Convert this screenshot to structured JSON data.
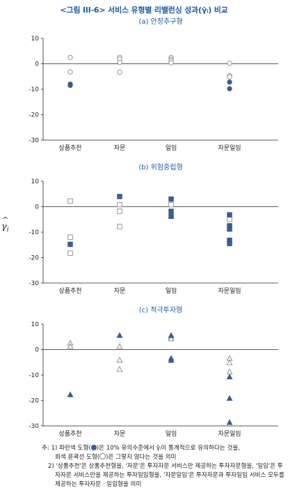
{
  "title": "<그림 III-6> 서비스 유형별 리밸런싱 성과(γ̂ᵢ) 비교",
  "y_axis_symbol": "γ̂i",
  "colors": {
    "title": "#1f5aa0",
    "significant": "#3b5d8f",
    "insignificant": "#888888"
  },
  "chart_data": [
    {
      "type": "scatter",
      "marker": "circle",
      "title": "(a) 안정추구형",
      "categories": [
        "상품추천",
        "자문",
        "일임",
        "자문일임"
      ],
      "ylim": [
        -30,
        10
      ],
      "yticks": [
        10,
        0,
        -10,
        -20,
        -30
      ],
      "series": [
        {
          "significant": false,
          "points": [
            {
              "x": "상품추천",
              "y": 2.5
            },
            {
              "x": "상품추천",
              "y": -3.2
            },
            {
              "x": "자문",
              "y": 2.5
            },
            {
              "x": "자문",
              "y": 1.8
            },
            {
              "x": "자문",
              "y": 0.5
            },
            {
              "x": "자문",
              "y": -3.3
            },
            {
              "x": "일임",
              "y": 2.5
            },
            {
              "x": "일임",
              "y": 1.8
            },
            {
              "x": "일임",
              "y": 1.2
            },
            {
              "x": "일임",
              "y": 0.4
            },
            {
              "x": "자문일임",
              "y": 0.2
            },
            {
              "x": "자문일임",
              "y": -4.6
            },
            {
              "x": "자문일임",
              "y": -5.2
            }
          ]
        },
        {
          "significant": true,
          "points": [
            {
              "x": "상품추천",
              "y": -8.0
            },
            {
              "x": "상품추천",
              "y": -8.5
            },
            {
              "x": "자문일임",
              "y": -7.2
            },
            {
              "x": "자문일임",
              "y": -9.8
            }
          ]
        }
      ]
    },
    {
      "type": "scatter",
      "marker": "square",
      "title": "(b) 위험중립형",
      "categories": [
        "상품추천",
        "자문",
        "일임",
        "자문일임"
      ],
      "ylim": [
        -30,
        10
      ],
      "yticks": [
        10,
        0,
        -10,
        -20,
        -30
      ],
      "series": [
        {
          "significant": false,
          "points": [
            {
              "x": "상품추천",
              "y": 2.2
            },
            {
              "x": "상품추천",
              "y": -12.0
            },
            {
              "x": "상품추천",
              "y": -18.3
            },
            {
              "x": "자문",
              "y": 0.8
            },
            {
              "x": "자문",
              "y": -1.8
            },
            {
              "x": "자문",
              "y": -7.8
            },
            {
              "x": "일임",
              "y": 0.8
            },
            {
              "x": "자문일임",
              "y": -5.0
            }
          ]
        },
        {
          "significant": true,
          "points": [
            {
              "x": "상품추천",
              "y": -14.8
            },
            {
              "x": "자문",
              "y": 4.0
            },
            {
              "x": "일임",
              "y": 3.0
            },
            {
              "x": "일임",
              "y": -1.8
            },
            {
              "x": "일임",
              "y": -3.8
            },
            {
              "x": "자문일임",
              "y": -3.2
            },
            {
              "x": "자문일임",
              "y": -7.5
            },
            {
              "x": "자문일임",
              "y": -8.8
            },
            {
              "x": "자문일임",
              "y": -13.2
            },
            {
              "x": "자문일임",
              "y": -14.5
            }
          ]
        }
      ]
    },
    {
      "type": "scatter",
      "marker": "triangle",
      "title": "(c) 적극투자형",
      "categories": [
        "상품추천",
        "자문",
        "일임",
        "자문일임"
      ],
      "ylim": [
        -30,
        10
      ],
      "yticks": [
        10,
        0,
        -10,
        -20,
        -30
      ],
      "series": [
        {
          "significant": false,
          "points": [
            {
              "x": "상품추천",
              "y": 2.5
            },
            {
              "x": "상품추천",
              "y": 1.2
            },
            {
              "x": "자문",
              "y": 1.2
            },
            {
              "x": "자문",
              "y": -4.2
            },
            {
              "x": "자문",
              "y": -7.8
            },
            {
              "x": "일임",
              "y": 4.8
            },
            {
              "x": "일임",
              "y": 4.2
            },
            {
              "x": "자문일임",
              "y": -3.5
            },
            {
              "x": "자문일임",
              "y": -5.2
            },
            {
              "x": "자문일임",
              "y": -8.8
            }
          ]
        },
        {
          "significant": true,
          "points": [
            {
              "x": "상품추천",
              "y": -17.8
            },
            {
              "x": "자문",
              "y": 5.5
            },
            {
              "x": "일임",
              "y": 5.5
            },
            {
              "x": "일임",
              "y": -3.5
            },
            {
              "x": "일임",
              "y": -4.3
            },
            {
              "x": "자문일임",
              "y": -10.8
            },
            {
              "x": "자문일임",
              "y": -19.2
            },
            {
              "x": "자문일임",
              "y": -28.7
            }
          ]
        }
      ]
    }
  ],
  "notes": {
    "n1_a": "주: 1) 파란색 도형(",
    "n1_b": ")은 10% 유의수준에서 γ̂ᵢ이 통계적으로 유의하다는 것을,",
    "n1_c": "회색 윤곽선 도형(",
    "n1_d": ")은 그렇지 않다는 것을 의미",
    "n2": "2) '상품추천'은 상품추천형을, '자문'은 투자자문 서비스만 제공하는 투자자문형을, '일임'은 투자자문 서비스만을 제공하는 투자일임형을, '자문일임'은 투자자문과 투자일임 서비스 모두를 제공하는 투자자문 · 일임형을 의미"
  }
}
